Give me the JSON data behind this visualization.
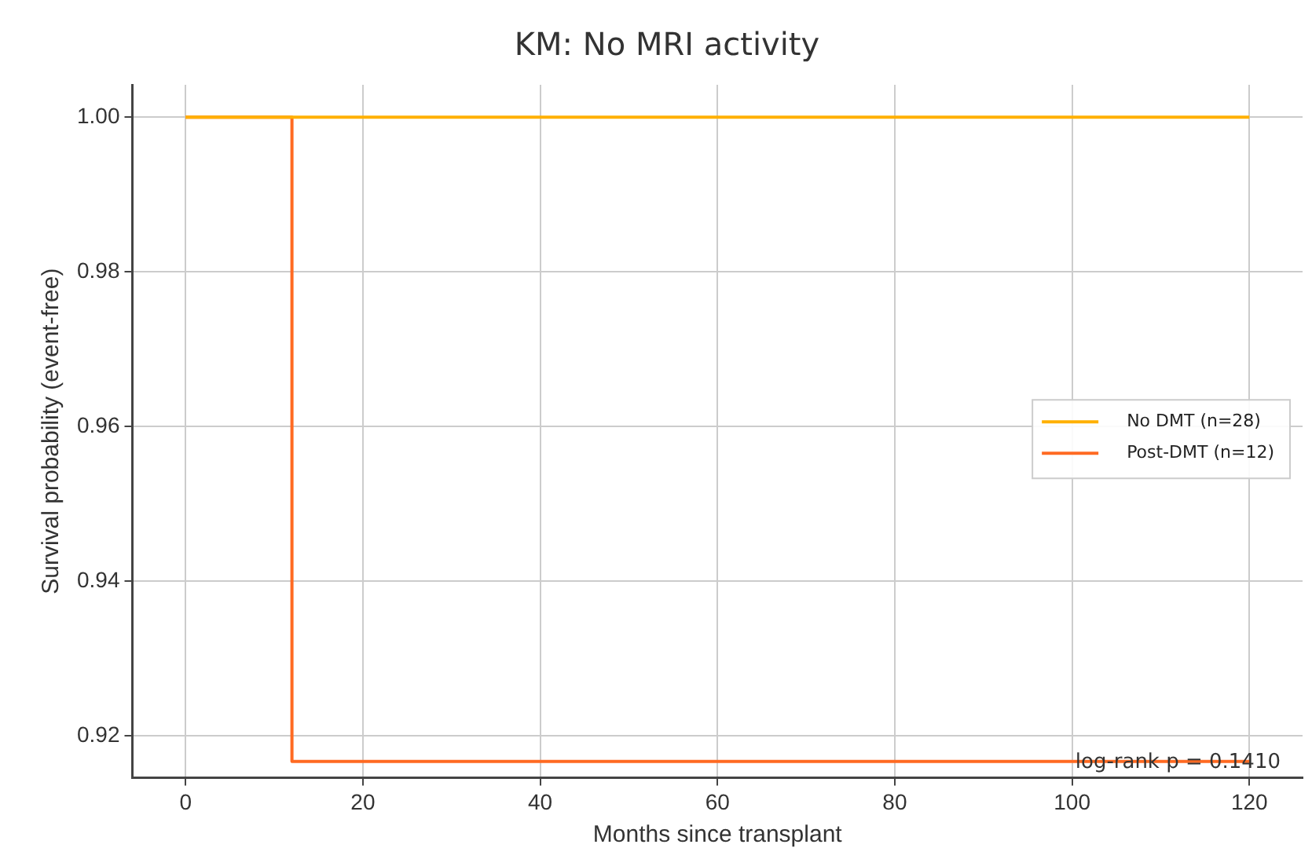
{
  "chart_data": {
    "type": "step",
    "title": "KM: No MRI activity",
    "xlabel": "Months since transplant",
    "ylabel": "Survival probability (event-free)",
    "series": [
      {
        "name": "No DMT (n=28)",
        "color": "#ffb000",
        "x": [
          0,
          120
        ],
        "values": [
          1.0,
          1.0
        ]
      },
      {
        "name": "Post-DMT (n=12)",
        "color": "#ff6a22",
        "x": [
          0,
          12,
          120
        ],
        "values": [
          1.0,
          0.9167,
          0.9167
        ]
      }
    ],
    "xlim": [
      -6,
      126
    ],
    "xticks": [
      0,
      20,
      40,
      60,
      80,
      100,
      120
    ],
    "ylim": [
      0.9146,
      1.0042
    ],
    "yticks": [
      {
        "value": 0.92,
        "label": "0.92"
      },
      {
        "value": 0.94,
        "label": "0.94"
      },
      {
        "value": 0.96,
        "label": "0.96"
      },
      {
        "value": 0.98,
        "label": "0.98"
      },
      {
        "value": 1.0,
        "label": "1.00"
      }
    ],
    "grid": true,
    "legend": "right",
    "line_style": "solid",
    "marker": "none",
    "annotations": [
      "log-rank p = 0.1410"
    ]
  }
}
